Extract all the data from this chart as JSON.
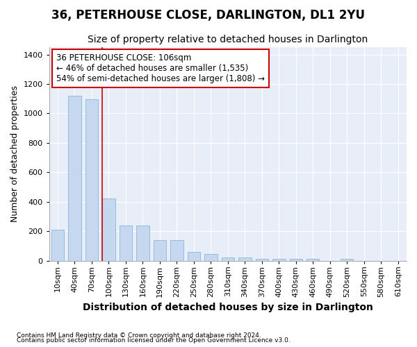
{
  "title": "36, PETERHOUSE CLOSE, DARLINGTON, DL1 2YU",
  "subtitle": "Size of property relative to detached houses in Darlington",
  "xlabel": "Distribution of detached houses by size in Darlington",
  "ylabel": "Number of detached properties",
  "footnote1": "Contains HM Land Registry data © Crown copyright and database right 2024.",
  "footnote2": "Contains public sector information licensed under the Open Government Licence v3.0.",
  "categories": [
    "10sqm",
    "40sqm",
    "70sqm",
    "100sqm",
    "130sqm",
    "160sqm",
    "190sqm",
    "220sqm",
    "250sqm",
    "280sqm",
    "310sqm",
    "340sqm",
    "370sqm",
    "400sqm",
    "430sqm",
    "460sqm",
    "490sqm",
    "520sqm",
    "550sqm",
    "580sqm",
    "610sqm"
  ],
  "values": [
    210,
    1120,
    1095,
    425,
    240,
    240,
    140,
    140,
    60,
    45,
    20,
    20,
    15,
    15,
    15,
    15,
    0,
    15,
    0,
    0,
    0
  ],
  "bar_color": "#c5d8f0",
  "bar_edge_color": "#8ab4d8",
  "marker_index": 3,
  "marker_color": "#cc0000",
  "annotation_text": "36 PETERHOUSE CLOSE: 106sqm\n← 46% of detached houses are smaller (1,535)\n54% of semi-detached houses are larger (1,808) →",
  "annotation_box_color": "white",
  "annotation_box_edge": "#cc0000",
  "ylim": [
    0,
    1450
  ],
  "yticks": [
    0,
    200,
    400,
    600,
    800,
    1000,
    1200,
    1400
  ],
  "bg_color": "#ffffff",
  "plot_bg_color": "#e8eef8",
  "title_fontsize": 12,
  "subtitle_fontsize": 10,
  "xlabel_fontsize": 10,
  "ylabel_fontsize": 9,
  "tick_fontsize": 8,
  "annot_fontsize": 8.5
}
